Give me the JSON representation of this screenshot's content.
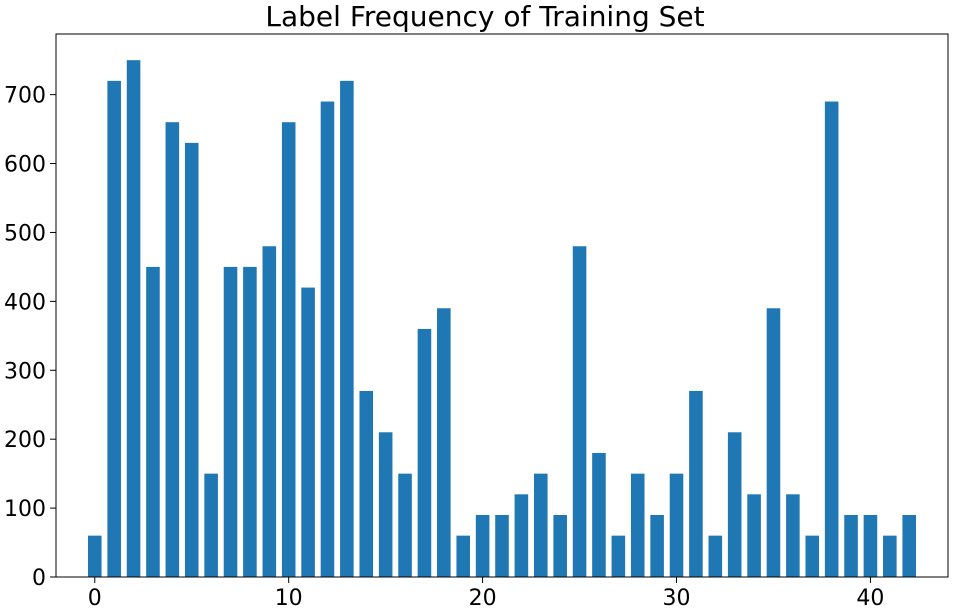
{
  "chart_data": {
    "type": "bar",
    "title": "Label Frequency of Training Set",
    "xlabel": "",
    "ylabel": "",
    "x": [
      0,
      1,
      2,
      3,
      4,
      5,
      6,
      7,
      8,
      9,
      10,
      11,
      12,
      13,
      14,
      15,
      16,
      17,
      18,
      19,
      20,
      21,
      22,
      23,
      24,
      25,
      26,
      27,
      28,
      29,
      30,
      31,
      32,
      33,
      34,
      35,
      36,
      37,
      38,
      39,
      40,
      41,
      42
    ],
    "values": [
      60,
      720,
      750,
      450,
      660,
      630,
      150,
      450,
      450,
      480,
      660,
      420,
      690,
      720,
      270,
      210,
      150,
      360,
      390,
      60,
      90,
      90,
      120,
      150,
      90,
      480,
      180,
      60,
      150,
      90,
      150,
      270,
      60,
      210,
      120,
      390,
      120,
      60,
      690,
      90,
      90,
      60,
      90
    ],
    "xlim": [
      -2,
      44
    ],
    "ylim": [
      0,
      788
    ],
    "xticks": [
      0,
      10,
      20,
      30,
      40
    ],
    "yticks": [
      0,
      100,
      200,
      300,
      400,
      500,
      600,
      700
    ],
    "bar_color": "#1f77b4",
    "grid": false,
    "legend": "none"
  }
}
